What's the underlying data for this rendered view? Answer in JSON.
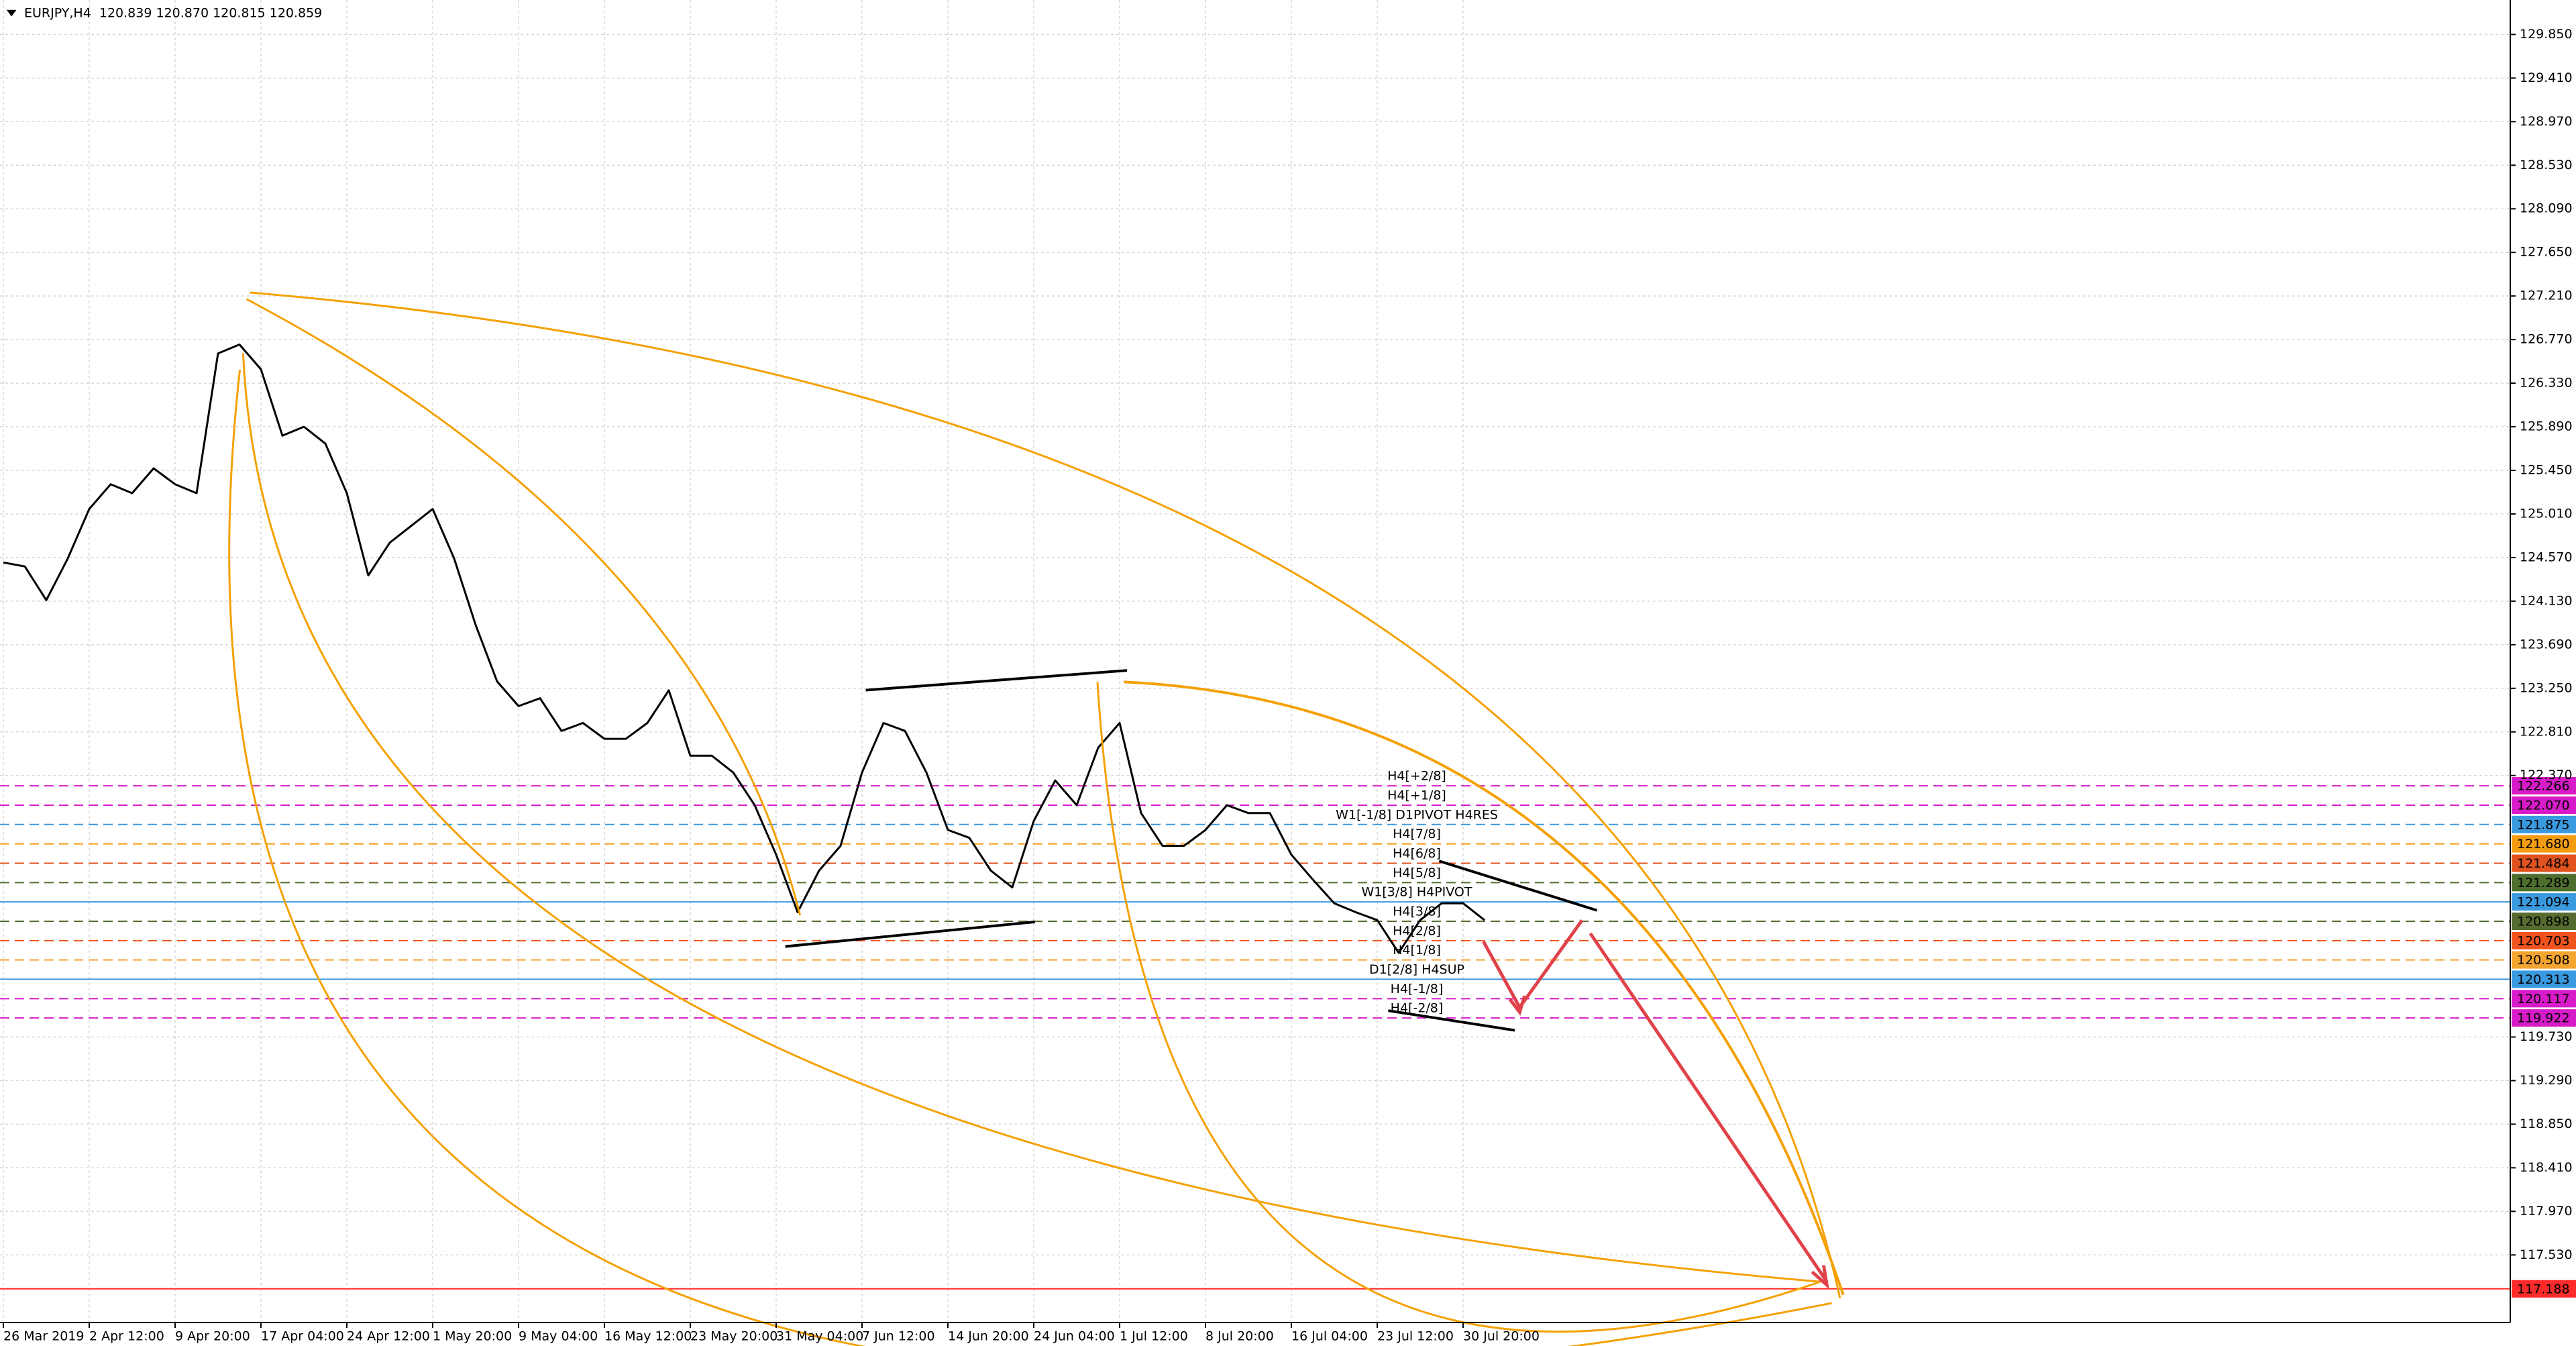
{
  "chart_data": {
    "type": "line",
    "title": "EURJPY,H4  120.839 120.870 120.815 120.859",
    "color": "#000000",
    "grid": true,
    "categories": [
      "26 Mar 2019",
      null,
      null,
      null,
      "2 Apr 12:00",
      null,
      null,
      null,
      "9 Apr 20:00",
      null,
      null,
      null,
      "17 Apr 04:00",
      null,
      null,
      null,
      "24 Apr 12:00",
      null,
      null,
      null,
      "1 May 20:00",
      null,
      null,
      null,
      "9 May 04:00",
      null,
      null,
      null,
      "16 May 12:00",
      null,
      null,
      null,
      "23 May 20:00",
      null,
      null,
      null,
      "31 May 04:00",
      null,
      null,
      null,
      "7 Jun 12:00",
      null,
      null,
      null,
      "14 Jun 20:00",
      null,
      null,
      null,
      "24 Jun 04:00",
      null,
      null,
      null,
      "1 Jul 12:00",
      null,
      null,
      null,
      "8 Jul 20:00",
      null,
      null,
      null,
      "16 Jul 04:00",
      null,
      null,
      null,
      "23 Jul 12:00",
      null,
      null,
      null,
      "30 Jul 20:00",
      null
    ],
    "values": [
      124.52,
      124.48,
      124.14,
      124.56,
      125.06,
      125.31,
      125.22,
      125.47,
      125.31,
      125.22,
      126.63,
      126.72,
      126.47,
      125.8,
      125.89,
      125.72,
      125.22,
      124.39,
      124.72,
      124.89,
      125.06,
      124.56,
      123.89,
      123.32,
      123.07,
      123.15,
      122.82,
      122.9,
      122.74,
      122.74,
      122.9,
      123.23,
      122.57,
      122.57,
      122.4,
      122.07,
      121.57,
      120.99,
      121.41,
      121.66,
      122.4,
      122.9,
      122.82,
      122.4,
      121.82,
      121.74,
      121.41,
      121.24,
      121.91,
      122.32,
      122.07,
      122.65,
      122.9,
      121.99,
      121.66,
      121.66,
      121.82,
      122.07,
      121.99,
      121.99,
      121.57,
      121.32,
      121.08,
      120.99,
      120.91,
      120.58,
      120.91,
      121.08,
      121.08,
      120.91
    ],
    "ylim": [
      116.848,
      130.198
    ],
    "yticks": [
      {
        "value": 129.85,
        "label": "129.850"
      },
      {
        "value": 129.41,
        "label": "129.410"
      },
      {
        "value": 128.97,
        "label": "128.970"
      },
      {
        "value": 128.53,
        "label": "128.530"
      },
      {
        "value": 128.09,
        "label": "128.090"
      },
      {
        "value": 127.65,
        "label": "127.650"
      },
      {
        "value": 127.21,
        "label": "127.210"
      },
      {
        "value": 126.77,
        "label": "126.770"
      },
      {
        "value": 126.33,
        "label": "126.330"
      },
      {
        "value": 125.89,
        "label": "125.890"
      },
      {
        "value": 125.45,
        "label": "125.450"
      },
      {
        "value": 125.01,
        "label": "125.010"
      },
      {
        "value": 124.57,
        "label": "124.570"
      },
      {
        "value": 124.13,
        "label": "124.130"
      },
      {
        "value": 123.69,
        "label": "123.690"
      },
      {
        "value": 123.25,
        "label": "123.250"
      },
      {
        "value": 122.81,
        "label": "122.810"
      },
      {
        "value": 122.37,
        "label": "122.370"
      },
      {
        "value": 119.73,
        "label": "119.730"
      },
      {
        "value": 119.29,
        "label": "119.290"
      },
      {
        "value": 118.85,
        "label": "118.850"
      },
      {
        "value": 118.41,
        "label": "118.410"
      },
      {
        "value": 117.97,
        "label": "117.970"
      },
      {
        "value": 117.53,
        "label": "117.530"
      }
    ],
    "levels": [
      {
        "name": "H4[+2/8]",
        "value": 122.266,
        "color": "#d81bc8",
        "style": "dashed"
      },
      {
        "name": "H4[+1/8]",
        "value": 122.07,
        "value_label": "122.070",
        "color": "#d81bc8",
        "style": "dashed"
      },
      {
        "name": "W1[-1/8] D1PIVOT H4RES",
        "value": 121.875,
        "color": "#3a9ae0",
        "style": "dashed"
      },
      {
        "name": "H4[7/8]",
        "value": 121.68,
        "value_label": "121.680",
        "color": "#f39c12",
        "style": "dashed"
      },
      {
        "name": "H4[6/8]",
        "value": 121.484,
        "color": "#e0531f",
        "style": "dashed"
      },
      {
        "name": "H4[5/8]",
        "value": 121.289,
        "color": "#4e6e2e",
        "style": "dashed"
      },
      {
        "name": "W1[3/8] H4PIVOT",
        "value": 121.094,
        "color": "#3a9ae0",
        "style": "solid"
      },
      {
        "name": "H4[3/8]",
        "value": 120.898,
        "color": "#556b2f",
        "style": "dashed"
      },
      {
        "name": "H4[2/8]",
        "value": 120.703,
        "color": "#f0541e",
        "style": "dashed"
      },
      {
        "name": "H4[1/8]",
        "value": 120.508,
        "color": "#f3a530",
        "style": "dashed"
      },
      {
        "name": "D1[2/8] H4SUP",
        "value": 120.313,
        "color": "#3a9ae0",
        "style": "solid"
      },
      {
        "name": "H4[-1/8]",
        "value": 120.117,
        "color": "#d81bc8",
        "style": "dashed"
      },
      {
        "name": "H4[-2/8]",
        "value": 119.922,
        "color": "#d81bc8",
        "style": "dashed"
      },
      {
        "value": 117.188,
        "color": "#ff2a2a",
        "style": "solid"
      }
    ]
  }
}
